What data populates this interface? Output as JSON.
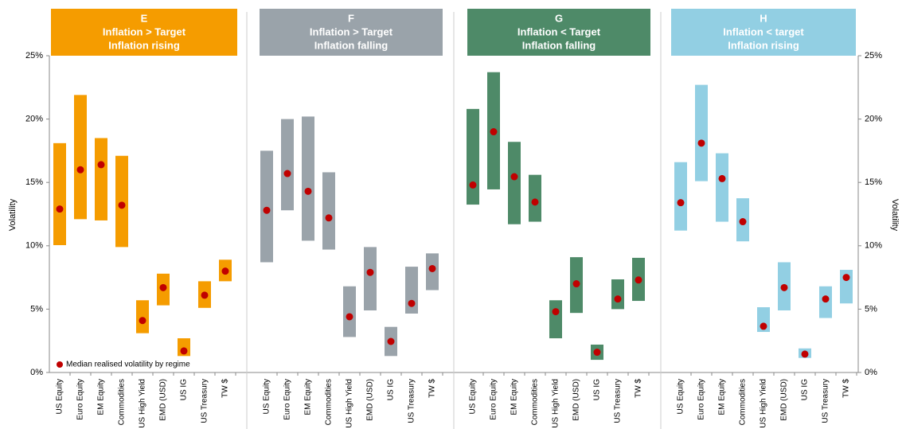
{
  "chart_data": [
    {
      "type": "floating_bar",
      "title": "E",
      "subtitle": [
        "Inflation > Target",
        "Inflation rising"
      ],
      "color": "#f59c00",
      "ylabel": "Volatility",
      "ylim": [
        0,
        25
      ],
      "yticks": [
        {
          "value": 0,
          "label": "0%"
        },
        {
          "value": 5,
          "label": "5%"
        },
        {
          "value": 10,
          "label": "10%"
        },
        {
          "value": 15,
          "label": "15%"
        },
        {
          "value": 20,
          "label": "20%"
        },
        {
          "value": 25,
          "label": "25%"
        }
      ],
      "legend": "Median realised volatility by regime",
      "marker_color": "#c00000",
      "categories": [
        "US Equity",
        "Euro Equity",
        "EM Equity",
        "Commodities",
        "US High Yield",
        "EMD (USD)",
        "US IG",
        "US Treasury",
        "TW $"
      ],
      "low": [
        10.05,
        12.1,
        12.0,
        9.9,
        3.1,
        5.3,
        1.3,
        5.1,
        7.2
      ],
      "high": [
        18.1,
        21.9,
        18.5,
        17.1,
        5.7,
        7.8,
        2.7,
        7.2,
        8.9
      ],
      "median": [
        12.9,
        16.0,
        16.4,
        13.2,
        4.1,
        6.7,
        1.7,
        6.1,
        8.0
      ]
    },
    {
      "type": "floating_bar",
      "title": "F",
      "subtitle": [
        "Inflation > Target",
        "Inflation falling"
      ],
      "color": "#9aa3aa",
      "categories": [
        "US Equity",
        "Euro Equity",
        "EM Equity",
        "Commodities",
        "US High Yield",
        "EMD (USD)",
        "US IG",
        "US Treasury",
        "TW $"
      ],
      "low": [
        8.7,
        12.8,
        10.4,
        9.7,
        2.8,
        4.9,
        1.3,
        4.65,
        6.5
      ],
      "high": [
        17.5,
        20.0,
        20.2,
        15.8,
        6.8,
        9.9,
        3.6,
        8.35,
        9.4
      ],
      "median": [
        12.8,
        15.7,
        14.3,
        12.2,
        4.4,
        7.9,
        2.45,
        5.45,
        8.2
      ]
    },
    {
      "type": "floating_bar",
      "title": "G",
      "subtitle": [
        "Inflation < Target",
        "Inflation falling"
      ],
      "color": "#4e8a68",
      "categories": [
        "US Equity",
        "Euro Equity",
        "EM Equity",
        "Commodities",
        "US High Yield",
        "EMD (USD)",
        "US IG",
        "US Treasury",
        "TW $"
      ],
      "low": [
        13.25,
        14.45,
        11.7,
        11.9,
        2.7,
        4.7,
        1.0,
        5.0,
        5.65
      ],
      "high": [
        20.8,
        23.7,
        18.2,
        15.6,
        5.7,
        9.1,
        2.2,
        7.35,
        9.05
      ],
      "median": [
        14.8,
        19.0,
        15.45,
        13.45,
        4.8,
        7.0,
        1.6,
        5.8,
        7.3
      ]
    },
    {
      "type": "floating_bar",
      "title": "H",
      "subtitle": [
        "Inflation < target",
        "Inflation rising"
      ],
      "color": "#92cfe3",
      "y2label": "Volatility",
      "y2lim": [
        0,
        25
      ],
      "y2ticks": [
        {
          "value": 0,
          "label": "0%"
        },
        {
          "value": 5,
          "label": "5%"
        },
        {
          "value": 10,
          "label": "10%"
        },
        {
          "value": 15,
          "label": "15%"
        },
        {
          "value": 20,
          "label": "20%"
        },
        {
          "value": 25,
          "label": "25%"
        }
      ],
      "categories": [
        "US Equity",
        "Euro Equity",
        "EM Equity",
        "Commodities",
        "US High Yield",
        "EMD (USD)",
        "US IG",
        "US Treasury",
        "TW $"
      ],
      "low": [
        11.2,
        15.1,
        11.9,
        10.35,
        3.2,
        4.9,
        1.15,
        4.3,
        5.45
      ],
      "high": [
        16.6,
        22.7,
        17.3,
        13.75,
        5.15,
        8.7,
        1.9,
        6.8,
        8.1
      ],
      "median": [
        13.4,
        18.1,
        15.3,
        11.9,
        3.65,
        6.7,
        1.45,
        5.8,
        7.5
      ]
    }
  ]
}
